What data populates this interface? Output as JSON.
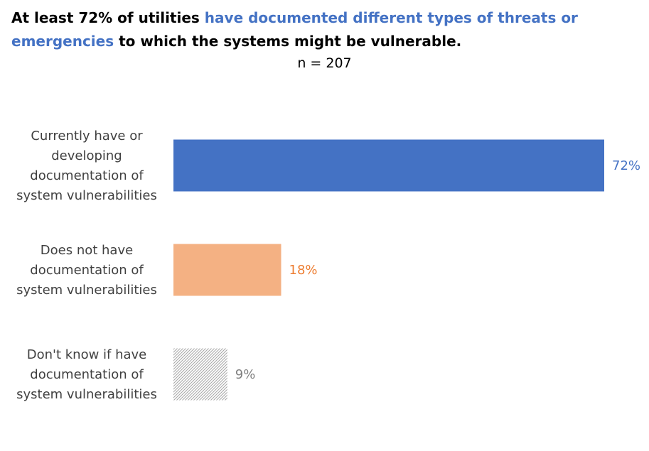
{
  "title": {
    "part1": "At least 72% of utilities ",
    "highlight": "have documented different types of threats or emergencies",
    "part2": " to which the systems might be vulnerable."
  },
  "subtitle": "n = 207",
  "colors": {
    "highlight": "#4472C4",
    "bar1": "#4472C4",
    "bar2": "#F4B183",
    "bar2_label": "#ED7D31",
    "bar3_hatch": "#A6A6A6",
    "bar3_label": "#7F7F7F"
  },
  "chart_data": {
    "type": "bar",
    "orientation": "horizontal",
    "categories": [
      [
        "Currently have or",
        "developing",
        "documentation of",
        "system vulnerabilities"
      ],
      [
        "Does not have",
        "documentation of",
        "system vulnerabilities"
      ],
      [
        "Don't know if have",
        "documentation of",
        "system vulnerabilities"
      ]
    ],
    "values": [
      72,
      18,
      9
    ],
    "value_labels": [
      "72%",
      "18%",
      "9%"
    ],
    "xlim": [
      0,
      72
    ],
    "grid": false,
    "legend": "none"
  }
}
